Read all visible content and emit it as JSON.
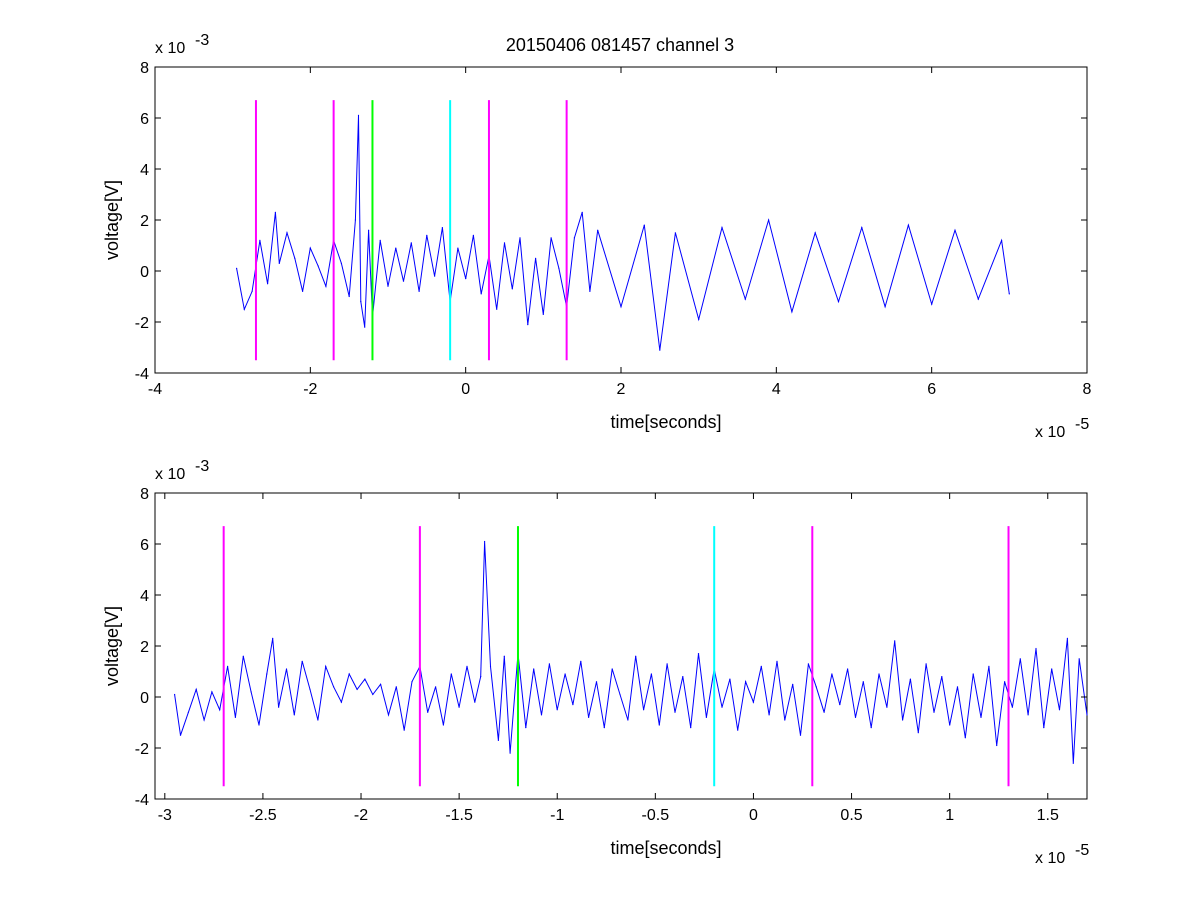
{
  "title": "20150406 081457 channel 3",
  "colors": {
    "trace": "#0000ff",
    "magenta": "#ff00ff",
    "green": "#00ff00",
    "cyan": "#00ffff",
    "axes": "#000000"
  },
  "chart_data": [
    {
      "type": "line",
      "title": "20150406 081457 channel 3",
      "xlabel": "time[seconds]",
      "ylabel": "voltage[V]",
      "x_multiplier_label": "x 10",
      "x_multiplier_exp": "-5",
      "y_multiplier_label": "x 10",
      "y_multiplier_exp": "-3",
      "xlim": [
        -4e-05,
        8e-05
      ],
      "ylim": [
        -0.004,
        0.008
      ],
      "x_ticks": [
        -4e-05,
        -2e-05,
        0,
        2e-05,
        4e-05,
        6e-05,
        8e-05
      ],
      "x_tick_labels": [
        "-4",
        "-2",
        "0",
        "2",
        "4",
        "6",
        "8"
      ],
      "y_ticks": [
        -0.004,
        -0.002,
        0,
        0.002,
        0.004,
        0.006,
        0.008
      ],
      "y_tick_labels": [
        "-4",
        "-2",
        "0",
        "2",
        "4",
        "6",
        "8"
      ],
      "grid": false,
      "series": [
        {
          "color": "#0000ff",
          "x": [
            -2.95e-05,
            -2.85e-05,
            -2.75e-05,
            -2.65e-05,
            -2.55e-05,
            -2.45e-05,
            -2.4e-05,
            -2.3e-05,
            -2.2e-05,
            -2.1e-05,
            -2e-05,
            -1.9e-05,
            -1.8e-05,
            -1.7e-05,
            -1.6e-05,
            -1.5e-05,
            -1.42e-05,
            -1.38e-05,
            -1.35e-05,
            -1.3e-05,
            -1.25e-05,
            -1.2e-05,
            -1.1e-05,
            -1e-05,
            -9e-06,
            -8e-06,
            -7e-06,
            -6e-06,
            -5e-06,
            -4e-06,
            -3e-06,
            -2e-06,
            -1e-06,
            0,
            1e-06,
            2e-06,
            3e-06,
            4e-06,
            5e-06,
            6e-06,
            7e-06,
            8e-06,
            9e-06,
            1e-05,
            1.1e-05,
            1.2e-05,
            1.3e-05,
            1.4e-05,
            1.5e-05,
            1.6e-05,
            1.7e-05,
            2e-05,
            2.3e-05,
            2.5e-05,
            2.7e-05,
            3e-05,
            3.3e-05,
            3.6e-05,
            3.9e-05,
            4.2e-05,
            4.5e-05,
            4.8e-05,
            5.1e-05,
            5.4e-05,
            5.7e-05,
            6e-05,
            6.3e-05,
            6.6e-05,
            6.9e-05,
            7e-05
          ],
          "y": [
            0.0001,
            -0.0015,
            -0.0008,
            0.0012,
            -0.0005,
            0.0023,
            0.0003,
            0.0015,
            0.0005,
            -0.0008,
            0.0009,
            0.0002,
            -0.0006,
            0.0012,
            0.0003,
            -0.001,
            0.002,
            0.0061,
            -0.0012,
            -0.0022,
            0.0016,
            -0.0018,
            0.0012,
            -0.0006,
            0.0009,
            -0.0004,
            0.0011,
            -0.0008,
            0.0014,
            -0.0002,
            0.0017,
            -0.0012,
            0.0009,
            -0.0003,
            0.0014,
            -0.0009,
            0.0006,
            -0.0015,
            0.0011,
            -0.0007,
            0.0013,
            -0.0021,
            0.0005,
            -0.0017,
            0.0013,
            0.0001,
            -0.0014,
            0.0013,
            0.0023,
            -0.0008,
            0.0016,
            -0.0014,
            0.0018,
            -0.0031,
            0.0015,
            -0.0019,
            0.0017,
            -0.0011,
            0.002,
            -0.0016,
            0.0015,
            -0.0012,
            0.0017,
            -0.0014,
            0.0018,
            -0.0013,
            0.0016,
            -0.0011,
            0.0012,
            -0.0009
          ]
        }
      ],
      "vertical_markers": [
        {
          "x": -2.7e-05,
          "color": "#ff00ff",
          "y_range": [
            -0.0035,
            0.0067
          ]
        },
        {
          "x": -1.7e-05,
          "color": "#ff00ff",
          "y_range": [
            -0.0035,
            0.0067
          ]
        },
        {
          "x": -1.2e-05,
          "color": "#00ff00",
          "y_range": [
            -0.0035,
            0.0067
          ]
        },
        {
          "x": -2e-06,
          "color": "#00ffff",
          "y_range": [
            -0.0035,
            0.0067
          ]
        },
        {
          "x": 3e-06,
          "color": "#ff00ff",
          "y_range": [
            -0.0035,
            0.0067
          ]
        },
        {
          "x": 1.3e-05,
          "color": "#ff00ff",
          "y_range": [
            -0.0035,
            0.0067
          ]
        }
      ]
    },
    {
      "type": "line",
      "xlabel": "time[seconds]",
      "ylabel": "voltage[V]",
      "x_multiplier_label": "x 10",
      "x_multiplier_exp": "-5",
      "y_multiplier_label": "x 10",
      "y_multiplier_exp": "-3",
      "xlim": [
        -3.05e-05,
        1.7e-05
      ],
      "ylim": [
        -0.004,
        0.008
      ],
      "x_ticks": [
        -3e-05,
        -2.5e-05,
        -2e-05,
        -1.5e-05,
        -1e-05,
        -5e-06,
        0,
        5e-06,
        1e-05,
        1.5e-05
      ],
      "x_tick_labels": [
        "-3",
        "-2.5",
        "-2",
        "-1.5",
        "-1",
        "-0.5",
        "0",
        "0.5",
        "1",
        "1.5"
      ],
      "y_ticks": [
        -0.004,
        -0.002,
        0,
        0.002,
        0.004,
        0.006,
        0.008
      ],
      "y_tick_labels": [
        "-4",
        "-2",
        "0",
        "2",
        "4",
        "6",
        "8"
      ],
      "grid": false,
      "series": [
        {
          "color": "#0000ff",
          "x": [
            -2.95e-05,
            -2.92e-05,
            -2.88e-05,
            -2.84e-05,
            -2.8e-05,
            -2.76e-05,
            -2.72e-05,
            -2.68e-05,
            -2.64e-05,
            -2.6e-05,
            -2.56e-05,
            -2.52e-05,
            -2.48e-05,
            -2.45e-05,
            -2.42e-05,
            -2.38e-05,
            -2.34e-05,
            -2.3e-05,
            -2.26e-05,
            -2.22e-05,
            -2.18e-05,
            -2.14e-05,
            -2.1e-05,
            -2.06e-05,
            -2.02e-05,
            -1.98e-05,
            -1.94e-05,
            -1.9e-05,
            -1.86e-05,
            -1.82e-05,
            -1.78e-05,
            -1.74e-05,
            -1.7e-05,
            -1.66e-05,
            -1.62e-05,
            -1.58e-05,
            -1.54e-05,
            -1.5e-05,
            -1.46e-05,
            -1.42e-05,
            -1.39e-05,
            -1.37e-05,
            -1.34e-05,
            -1.3e-05,
            -1.27e-05,
            -1.24e-05,
            -1.2e-05,
            -1.16e-05,
            -1.12e-05,
            -1.08e-05,
            -1.04e-05,
            -1e-05,
            -9.6e-06,
            -9.2e-06,
            -8.8e-06,
            -8.4e-06,
            -8e-06,
            -7.6e-06,
            -7.2e-06,
            -6.8e-06,
            -6.4e-06,
            -6e-06,
            -5.6e-06,
            -5.2e-06,
            -4.8e-06,
            -4.4e-06,
            -4e-06,
            -3.6e-06,
            -3.2e-06,
            -2.8e-06,
            -2.4e-06,
            -2e-06,
            -1.6e-06,
            -1.2e-06,
            -8e-07,
            -4e-07,
            0,
            4e-07,
            8e-07,
            1.2e-06,
            1.6e-06,
            2e-06,
            2.4e-06,
            2.8e-06,
            3.2e-06,
            3.6e-06,
            4e-06,
            4.4e-06,
            4.8e-06,
            5.2e-06,
            5.6e-06,
            6e-06,
            6.4e-06,
            6.8e-06,
            7.2e-06,
            7.6e-06,
            8e-06,
            8.4e-06,
            8.8e-06,
            9.2e-06,
            9.6e-06,
            1e-05,
            1.04e-05,
            1.08e-05,
            1.12e-05,
            1.16e-05,
            1.2e-05,
            1.24e-05,
            1.28e-05,
            1.32e-05,
            1.36e-05,
            1.4e-05,
            1.44e-05,
            1.48e-05,
            1.52e-05,
            1.56e-05,
            1.6e-05,
            1.63e-05,
            1.66e-05,
            1.7e-05
          ],
          "y": [
            0.0001,
            -0.0015,
            -0.0006,
            0.0003,
            -0.0009,
            0.0002,
            -0.0005,
            0.0012,
            -0.0008,
            0.0016,
            0.0002,
            -0.0011,
            0.0009,
            0.0023,
            -0.0004,
            0.0011,
            -0.0007,
            0.0014,
            0.0003,
            -0.0009,
            0.0012,
            0.0004,
            -0.0002,
            0.0009,
            0.0003,
            0.0007,
            0.0001,
            0.0005,
            -0.0007,
            0.0004,
            -0.0013,
            0.0006,
            0.0012,
            -0.0006,
            0.0004,
            -0.0011,
            0.0009,
            -0.0004,
            0.0012,
            -0.0002,
            0.0008,
            0.0061,
            0.0012,
            -0.0017,
            0.0016,
            -0.0022,
            0.0017,
            -0.0012,
            0.0011,
            -0.0007,
            0.0013,
            -0.0005,
            0.0009,
            -0.0003,
            0.0014,
            -0.0008,
            0.0006,
            -0.0012,
            0.0011,
            0.0001,
            -0.0009,
            0.0016,
            -0.0005,
            0.0009,
            -0.0011,
            0.0013,
            -0.0006,
            0.0008,
            -0.0012,
            0.0017,
            -0.0008,
            0.0011,
            -0.0004,
            0.0007,
            -0.0013,
            0.0006,
            -0.0002,
            0.0012,
            -0.0007,
            0.0014,
            -0.0009,
            0.0005,
            -0.0015,
            0.0013,
            0.0004,
            -0.0006,
            0.0009,
            -0.0003,
            0.0011,
            -0.0008,
            0.0006,
            -0.0012,
            0.0009,
            -0.0004,
            0.0022,
            -0.0009,
            0.0007,
            -0.0014,
            0.0013,
            -0.0006,
            0.0008,
            -0.0011,
            0.0004,
            -0.0016,
            0.0009,
            -0.0008,
            0.0012,
            -0.0019,
            0.0006,
            -0.0004,
            0.0015,
            -0.0007,
            0.0019,
            -0.0012,
            0.0011,
            -0.0005,
            0.0023,
            -0.0026,
            0.0015,
            -0.0007
          ]
        }
      ],
      "vertical_markers": [
        {
          "x": -2.7e-05,
          "color": "#ff00ff",
          "y_range": [
            -0.0035,
            0.0067
          ]
        },
        {
          "x": -1.7e-05,
          "color": "#ff00ff",
          "y_range": [
            -0.0035,
            0.0067
          ]
        },
        {
          "x": -1.2e-05,
          "color": "#00ff00",
          "y_range": [
            -0.0035,
            0.0067
          ]
        },
        {
          "x": -2e-06,
          "color": "#00ffff",
          "y_range": [
            -0.0035,
            0.0067
          ]
        },
        {
          "x": 3e-06,
          "color": "#ff00ff",
          "y_range": [
            -0.0035,
            0.0067
          ]
        },
        {
          "x": 1.3e-05,
          "color": "#ff00ff",
          "y_range": [
            -0.0035,
            0.0067
          ]
        }
      ]
    }
  ]
}
